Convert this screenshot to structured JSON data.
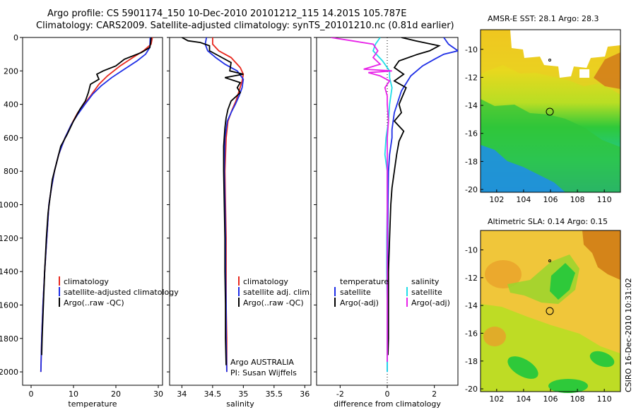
{
  "header": {
    "line1": "Argo profile: CS 5901174_150 10-Dec-2010 20101212_115 14.201S 105.787E",
    "line2": "Climatology: CARS2009. Satellite-adjusted climatology: synTS_20101210.nc (0.81d earlier)"
  },
  "colors": {
    "climatology": "#e8281e",
    "satellite": "#1e2ee6",
    "argo": "#000000",
    "sat_salt": "#22dde8",
    "argo_salt_diff": "#e822e8"
  },
  "chart_data": [
    {
      "type": "line",
      "name": "temperature",
      "xlabel": "temperature",
      "ylabel": "",
      "xlim": [
        -2,
        31
      ],
      "ylim": [
        2080,
        0
      ],
      "xticks": [
        0,
        10,
        20,
        30
      ],
      "yticks": [
        0,
        200,
        400,
        600,
        800,
        1000,
        1200,
        1400,
        1600,
        1800,
        2000
      ],
      "legend": [
        "climatology",
        "satellite-adjusted climatology",
        "Argo(..raw -QC)"
      ],
      "series": [
        {
          "name": "climatology",
          "color": "#e8281e",
          "points": [
            [
              28.6,
              0
            ],
            [
              28.3,
              40
            ],
            [
              26.5,
              80
            ],
            [
              24,
              120
            ],
            [
              21,
              170
            ],
            [
              18,
              230
            ],
            [
              16,
              280
            ],
            [
              14,
              350
            ],
            [
              12.5,
              400
            ],
            [
              11,
              450
            ],
            [
              9.5,
              520
            ],
            [
              8,
              600
            ],
            [
              6.5,
              700
            ],
            [
              5.5,
              800
            ],
            [
              4.8,
              900
            ],
            [
              4.2,
              1000
            ],
            [
              3.7,
              1200
            ],
            [
              3.2,
              1400
            ],
            [
              2.8,
              1600
            ],
            [
              2.5,
              1800
            ],
            [
              2.3,
              2000
            ]
          ]
        },
        {
          "name": "satellite-adjusted climatology",
          "color": "#1e2ee6",
          "points": [
            [
              28.1,
              0
            ],
            [
              28,
              60
            ],
            [
              27,
              100
            ],
            [
              25,
              140
            ],
            [
              22,
              190
            ],
            [
              19,
              240
            ],
            [
              16.5,
              290
            ],
            [
              14.5,
              340
            ],
            [
              12.7,
              400
            ],
            [
              11,
              460
            ],
            [
              9.5,
              520
            ],
            [
              8,
              600
            ],
            [
              6.5,
              700
            ],
            [
              5.5,
              800
            ],
            [
              4.8,
              900
            ],
            [
              4.2,
              1000
            ],
            [
              3.7,
              1200
            ],
            [
              3.2,
              1400
            ],
            [
              2.8,
              1600
            ],
            [
              2.5,
              1800
            ],
            [
              2.3,
              2000
            ]
          ]
        },
        {
          "name": "Argo(..raw -QC)",
          "color": "#000000",
          "points": [
            [
              28.3,
              0
            ],
            [
              28.2,
              30
            ],
            [
              28,
              60
            ],
            [
              26,
              90
            ],
            [
              22,
              130
            ],
            [
              20,
              170
            ],
            [
              17,
              200
            ],
            [
              15.5,
              220
            ],
            [
              16,
              250
            ],
            [
              14,
              280
            ],
            [
              13.5,
              330
            ],
            [
              12.8,
              380
            ],
            [
              11.5,
              430
            ],
            [
              10,
              500
            ],
            [
              8.5,
              580
            ],
            [
              7,
              650
            ],
            [
              6,
              750
            ],
            [
              5,
              850
            ],
            [
              4.5,
              950
            ],
            [
              4,
              1050
            ],
            [
              3.6,
              1200
            ],
            [
              3.2,
              1400
            ],
            [
              2.9,
              1600
            ],
            [
              2.6,
              1800
            ],
            [
              2.5,
              1900
            ]
          ]
        }
      ]
    },
    {
      "type": "line",
      "name": "salinity",
      "xlabel": "salinity",
      "ylabel": "",
      "xlim": [
        33.8,
        36.1
      ],
      "ylim": [
        2080,
        0
      ],
      "xticks": [
        34,
        34.5,
        35,
        35.5,
        36
      ],
      "yticks": [
        0,
        200,
        400,
        600,
        800,
        1000,
        1200,
        1400,
        1600,
        1800,
        2000
      ],
      "legend": [
        "climatology",
        "satellite adj. clim.",
        "Argo(..raw -QC)"
      ],
      "annotations": [
        "Argo AUSTRALIA",
        "PI: Susan Wijffels"
      ],
      "series": [
        {
          "name": "climatology",
          "color": "#e8281e",
          "points": [
            [
              34.5,
              0
            ],
            [
              34.5,
              40
            ],
            [
              34.6,
              80
            ],
            [
              34.8,
              120
            ],
            [
              34.95,
              180
            ],
            [
              35,
              220
            ],
            [
              34.98,
              260
            ],
            [
              34.93,
              320
            ],
            [
              34.88,
              380
            ],
            [
              34.82,
              430
            ],
            [
              34.75,
              500
            ],
            [
              34.72,
              600
            ],
            [
              34.7,
              800
            ],
            [
              34.71,
              1000
            ],
            [
              34.72,
              1200
            ],
            [
              34.72,
              1400
            ],
            [
              34.72,
              1600
            ],
            [
              34.73,
              1800
            ],
            [
              34.73,
              2000
            ]
          ]
        },
        {
          "name": "satellite adj. clim.",
          "color": "#1e2ee6",
          "points": [
            [
              34.4,
              0
            ],
            [
              34.38,
              40
            ],
            [
              34.42,
              80
            ],
            [
              34.55,
              120
            ],
            [
              34.7,
              160
            ],
            [
              34.9,
              200
            ],
            [
              35,
              250
            ],
            [
              34.98,
              300
            ],
            [
              34.93,
              350
            ],
            [
              34.87,
              400
            ],
            [
              34.8,
              450
            ],
            [
              34.74,
              500
            ],
            [
              34.7,
              600
            ],
            [
              34.69,
              800
            ],
            [
              34.7,
              1000
            ],
            [
              34.71,
              1200
            ],
            [
              34.71,
              1400
            ],
            [
              34.72,
              1600
            ],
            [
              34.72,
              1800
            ],
            [
              34.73,
              2000
            ]
          ]
        },
        {
          "name": "Argo(..raw -QC)",
          "color": "#000000",
          "points": [
            [
              34.0,
              0
            ],
            [
              34.1,
              20
            ],
            [
              34.3,
              30
            ],
            [
              34.45,
              50
            ],
            [
              34.45,
              80
            ],
            [
              34.6,
              110
            ],
            [
              34.8,
              150
            ],
            [
              34.78,
              200
            ],
            [
              35,
              220
            ],
            [
              34.7,
              240
            ],
            [
              34.95,
              270
            ],
            [
              34.9,
              300
            ],
            [
              34.95,
              330
            ],
            [
              34.8,
              380
            ],
            [
              34.75,
              430
            ],
            [
              34.72,
              480
            ],
            [
              34.7,
              540
            ],
            [
              34.68,
              650
            ],
            [
              34.68,
              800
            ],
            [
              34.69,
              1000
            ],
            [
              34.7,
              1200
            ],
            [
              34.7,
              1400
            ],
            [
              34.71,
              1600
            ],
            [
              34.71,
              1800
            ],
            [
              34.72,
              1960
            ]
          ]
        }
      ]
    },
    {
      "type": "line",
      "name": "difference",
      "xlabel": "difference from climatology",
      "ylabel": "",
      "xlim": [
        -3,
        3
      ],
      "ylim": [
        2080,
        0
      ],
      "xticks": [
        -2,
        0,
        2
      ],
      "yticks": [
        0,
        200,
        400,
        600,
        800,
        1000,
        1200,
        1400,
        1600,
        1800,
        2000
      ],
      "legend_temperature_head": "temperature",
      "legend_salinity_head": "salinity",
      "legend": [
        "satellite",
        "Argo(-adj)",
        "satellite",
        "Argo(-adj)"
      ],
      "series": [
        {
          "name": "temperature satellite",
          "color": "#1e2ee6",
          "points": [
            [
              2.4,
              0
            ],
            [
              2.6,
              40
            ],
            [
              3,
              80
            ],
            [
              2.4,
              100
            ],
            [
              2,
              130
            ],
            [
              1.5,
              170
            ],
            [
              1,
              230
            ],
            [
              0.6,
              320
            ],
            [
              0.3,
              450
            ],
            [
              0.2,
              550
            ],
            [
              0.2,
              600
            ],
            [
              0.1,
              700
            ],
            [
              0.05,
              800
            ],
            [
              0.03,
              1000
            ],
            [
              0.02,
              1200
            ],
            [
              0.02,
              1400
            ],
            [
              0,
              1600
            ],
            [
              0,
              1800
            ],
            [
              0,
              2000
            ]
          ]
        },
        {
          "name": "temperature Argo(-adj)",
          "color": "#000000",
          "points": [
            [
              0.6,
              0
            ],
            [
              1.2,
              20
            ],
            [
              2.2,
              50
            ],
            [
              1.8,
              80
            ],
            [
              1.3,
              100
            ],
            [
              0.5,
              140
            ],
            [
              0.3,
              180
            ],
            [
              0.7,
              220
            ],
            [
              0.3,
              260
            ],
            [
              0.8,
              300
            ],
            [
              0.5,
              400
            ],
            [
              0.6,
              450
            ],
            [
              0.3,
              500
            ],
            [
              0.7,
              560
            ],
            [
              0.5,
              620
            ],
            [
              0.4,
              700
            ],
            [
              0.3,
              800
            ],
            [
              0.2,
              900
            ],
            [
              0.15,
              1000
            ],
            [
              0.1,
              1200
            ],
            [
              0.05,
              1400
            ],
            [
              0.05,
              1600
            ],
            [
              0.05,
              1800
            ],
            [
              0.03,
              1900
            ]
          ]
        },
        {
          "name": "salinity satellite",
          "color": "#22dde8",
          "points": [
            [
              -0.3,
              0
            ],
            [
              -0.5,
              40
            ],
            [
              -0.6,
              80
            ],
            [
              -0.2,
              140
            ],
            [
              0.1,
              200
            ],
            [
              0.1,
              240
            ],
            [
              0.2,
              300
            ],
            [
              0.1,
              400
            ],
            [
              0.05,
              500
            ],
            [
              0,
              550
            ],
            [
              -0.05,
              600
            ],
            [
              -0.1,
              700
            ],
            [
              0,
              800
            ],
            [
              0,
              900
            ],
            [
              0,
              1000
            ],
            [
              -0.02,
              1200
            ],
            [
              -0.02,
              1400
            ],
            [
              0,
              1600
            ],
            [
              0,
              1800
            ],
            [
              0,
              2000
            ]
          ]
        },
        {
          "name": "salinity Argo(-adj)",
          "color": "#e822e8",
          "points": [
            [
              -2.4,
              0
            ],
            [
              -1.5,
              20
            ],
            [
              -0.6,
              40
            ],
            [
              -0.4,
              80
            ],
            [
              -0.6,
              120
            ],
            [
              -0.3,
              160
            ],
            [
              -1,
              190
            ],
            [
              0.2,
              200
            ],
            [
              -0.8,
              210
            ],
            [
              -0.3,
              230
            ],
            [
              0.1,
              260
            ],
            [
              -0.1,
              300
            ],
            [
              0,
              350
            ],
            [
              0,
              400
            ],
            [
              0.05,
              500
            ],
            [
              0,
              600
            ],
            [
              0,
              800
            ],
            [
              0,
              1000
            ],
            [
              0,
              1200
            ],
            [
              0,
              1400
            ],
            [
              0,
              1600
            ],
            [
              0,
              1800
            ],
            [
              0,
              1940
            ]
          ]
        }
      ]
    },
    {
      "type": "heatmap",
      "name": "sst-map",
      "title": "AMSR-E SST: 28.1 Argo: 28.3",
      "xlim": [
        100.8,
        111.2
      ],
      "ylim": [
        -20.2,
        -8.6
      ],
      "xticks": [
        102,
        104,
        106,
        108,
        110
      ],
      "yticks": [
        -10,
        -12,
        -14,
        -16,
        -18,
        -20
      ],
      "markers": [
        {
          "lon": 105.787,
          "lat": -14.201
        },
        {
          "lon": 105.8,
          "lat": -10.45
        }
      ]
    },
    {
      "type": "heatmap",
      "name": "sla-map",
      "title": "Altimetric SLA: 0.14 Argo: 0.15",
      "xlim": [
        100.8,
        111.2
      ],
      "ylim": [
        -20.2,
        -8.6
      ],
      "xticks": [
        102,
        104,
        106,
        108,
        110
      ],
      "yticks": [
        -10,
        -12,
        -14,
        -16,
        -18,
        -20
      ],
      "markers": [
        {
          "lon": 105.787,
          "lat": -14.201
        },
        {
          "lon": 105.8,
          "lat": -10.45
        }
      ]
    }
  ],
  "footer": {
    "credit": "CSIRO 16-Dec-2010 10:31:02"
  }
}
